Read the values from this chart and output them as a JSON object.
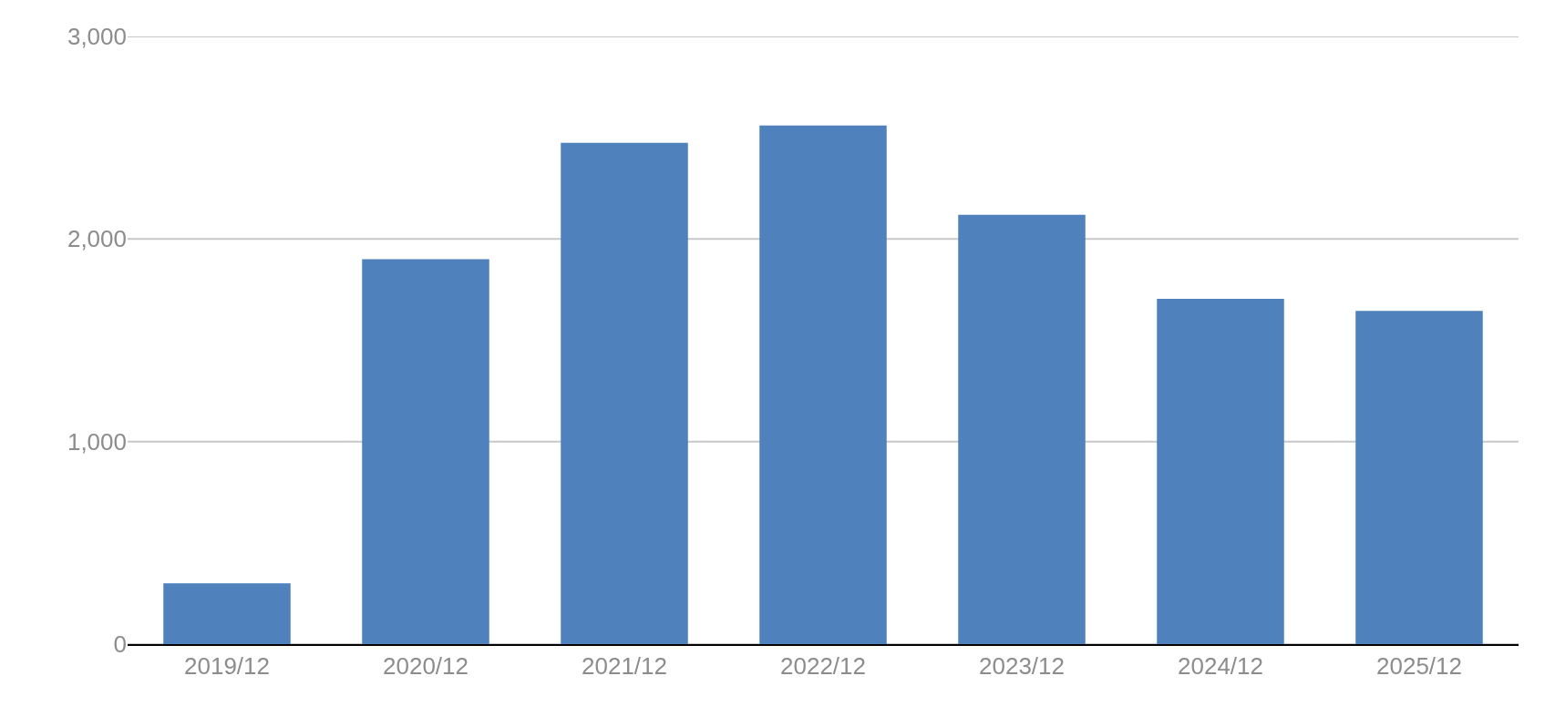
{
  "chart_data": {
    "type": "bar",
    "categories": [
      "2019/12",
      "2020/12",
      "2021/12",
      "2022/12",
      "2023/12",
      "2024/12",
      "2025/12"
    ],
    "values": [
      300,
      1900,
      2475,
      2560,
      2120,
      1705,
      1645
    ],
    "color": "#4f81bd",
    "ylim": [
      0,
      3000
    ],
    "yticks": [
      {
        "value": 0,
        "label": "0"
      },
      {
        "value": 1000,
        "label": "1,000"
      },
      {
        "value": 2000,
        "label": "2,000"
      },
      {
        "value": 3000,
        "label": "3,000"
      }
    ],
    "grid": "y"
  }
}
